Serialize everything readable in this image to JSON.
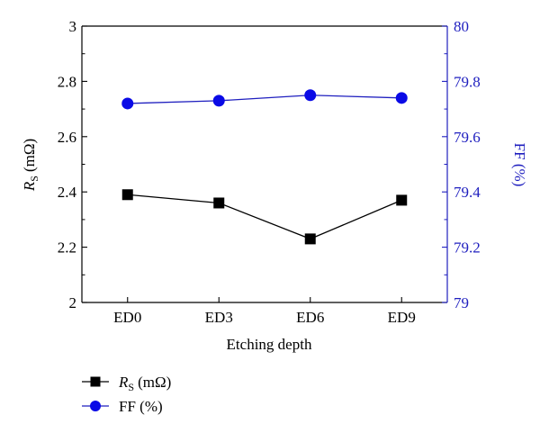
{
  "colors": {
    "left_axis": "#000000",
    "right_axis": "#1f1fbf",
    "series_rs": "#000000",
    "series_ff": "#0a0ae6",
    "background": "#ffffff"
  },
  "chart_data": {
    "type": "line",
    "categories": [
      "ED0",
      "ED3",
      "ED6",
      "ED9"
    ],
    "xlabel": "Etching depth",
    "ylabel_left": {
      "symbol": "R",
      "subscript": "S",
      "unit": "(mΩ)"
    },
    "ylabel_right": "FF (%)",
    "ylim_left": [
      2,
      3
    ],
    "ylim_right": [
      79,
      80
    ],
    "yticks_left": [
      "2",
      "2.2",
      "2.4",
      "2.6",
      "2.8",
      "3"
    ],
    "yticks_right": [
      "79",
      "79.2",
      "79.4",
      "79.6",
      "79.8",
      "80"
    ],
    "grid": false,
    "legend_position": "below-left",
    "series": [
      {
        "axis": "left",
        "marker": "square",
        "legend": {
          "symbol": "R",
          "subscript": "S",
          "unit": "(mΩ)"
        },
        "values": [
          2.39,
          2.36,
          2.23,
          2.37
        ]
      },
      {
        "axis": "right",
        "marker": "circle",
        "legend": "FF (%)",
        "values": [
          79.72,
          79.73,
          79.75,
          79.74
        ]
      }
    ]
  }
}
